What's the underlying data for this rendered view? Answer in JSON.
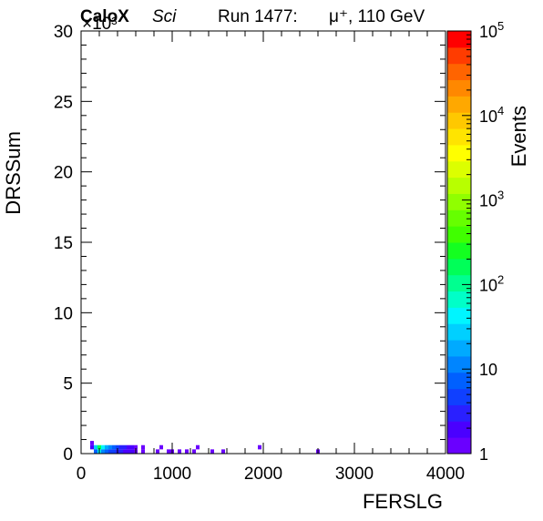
{
  "header": {
    "brand": "CaloX",
    "tag": "Sci",
    "run": "Run 1477:",
    "particle": "μ⁺, 110 GeV"
  },
  "chart_data": {
    "type": "heatmap",
    "title": "",
    "xlabel": "FERSLG",
    "ylabel": "DRSSum",
    "zlabel": "Events",
    "xlim": [
      0,
      4000
    ],
    "ylim": [
      0,
      30
    ],
    "y_multiplier": "×10³",
    "x_ticks": [
      0,
      1000,
      2000,
      3000,
      4000
    ],
    "y_ticks": [
      0,
      5,
      10,
      15,
      20,
      25,
      30
    ],
    "z_scale": "log",
    "zlim": [
      1,
      100000
    ],
    "z_tick_labels": [
      {
        "base": "1",
        "exp": ""
      },
      {
        "base": "10",
        "exp": ""
      },
      {
        "base": "10",
        "exp": "2"
      },
      {
        "base": "10",
        "exp": "3"
      },
      {
        "base": "10",
        "exp": "4"
      },
      {
        "base": "10",
        "exp": "5"
      }
    ],
    "palette": [
      "#6a00ff",
      "#4a00ff",
      "#2a20ff",
      "#1040ff",
      "#0060ff",
      "#0085ff",
      "#00aaff",
      "#00d0ff",
      "#00f5ff",
      "#00ffc8",
      "#00ff90",
      "#00ff58",
      "#14ff20",
      "#40ff00",
      "#66ff00",
      "#90ff00",
      "#b8ff00",
      "#dcff00",
      "#ffff00",
      "#ffe400",
      "#ffc800",
      "#ffa800",
      "#ff8800",
      "#ff6400",
      "#ff3c00",
      "#ff0000"
    ],
    "x_bin_width": 40,
    "y_bin_width": 0.3,
    "bins": [
      {
        "x": 100,
        "y": 0.6,
        "z": 1
      },
      {
        "x": 100,
        "y": 0.3,
        "z": 2
      },
      {
        "x": 140,
        "y": 0.3,
        "z": 25
      },
      {
        "x": 180,
        "y": 0.3,
        "z": 150
      },
      {
        "x": 220,
        "y": 0.3,
        "z": 50
      },
      {
        "x": 260,
        "y": 0.3,
        "z": 20
      },
      {
        "x": 300,
        "y": 0.3,
        "z": 10
      },
      {
        "x": 340,
        "y": 0.3,
        "z": 6
      },
      {
        "x": 380,
        "y": 0.3,
        "z": 4
      },
      {
        "x": 420,
        "y": 0.3,
        "z": 3
      },
      {
        "x": 460,
        "y": 0.3,
        "z": 3
      },
      {
        "x": 500,
        "y": 0.3,
        "z": 2
      },
      {
        "x": 540,
        "y": 0.3,
        "z": 2
      },
      {
        "x": 580,
        "y": 0.3,
        "z": 1
      },
      {
        "x": 140,
        "y": 0.0,
        "z": 8
      },
      {
        "x": 180,
        "y": 0.0,
        "z": 40
      },
      {
        "x": 220,
        "y": 0.0,
        "z": 12
      },
      {
        "x": 260,
        "y": 0.0,
        "z": 6
      },
      {
        "x": 300,
        "y": 0.0,
        "z": 5
      },
      {
        "x": 340,
        "y": 0.0,
        "z": 4
      },
      {
        "x": 380,
        "y": 0.0,
        "z": 3
      },
      {
        "x": 420,
        "y": 0.0,
        "z": 3
      },
      {
        "x": 460,
        "y": 0.0,
        "z": 2
      },
      {
        "x": 500,
        "y": 0.0,
        "z": 2
      },
      {
        "x": 540,
        "y": 0.0,
        "z": 2
      },
      {
        "x": 580,
        "y": 0.0,
        "z": 1
      },
      {
        "x": 660,
        "y": 0.0,
        "z": 1
      },
      {
        "x": 660,
        "y": 0.3,
        "z": 1
      },
      {
        "x": 820,
        "y": 0.0,
        "z": 1
      },
      {
        "x": 860,
        "y": 0.3,
        "z": 1
      },
      {
        "x": 940,
        "y": 0.0,
        "z": 1
      },
      {
        "x": 980,
        "y": 0.0,
        "z": 1
      },
      {
        "x": 1060,
        "y": 0.0,
        "z": 1
      },
      {
        "x": 1140,
        "y": 0.0,
        "z": 1
      },
      {
        "x": 1220,
        "y": 0.0,
        "z": 1
      },
      {
        "x": 1260,
        "y": 0.3,
        "z": 1
      },
      {
        "x": 1420,
        "y": 0.0,
        "z": 1
      },
      {
        "x": 1540,
        "y": 0.0,
        "z": 1
      },
      {
        "x": 1940,
        "y": 0.3,
        "z": 1
      },
      {
        "x": 2580,
        "y": 0.0,
        "z": 1
      }
    ]
  }
}
